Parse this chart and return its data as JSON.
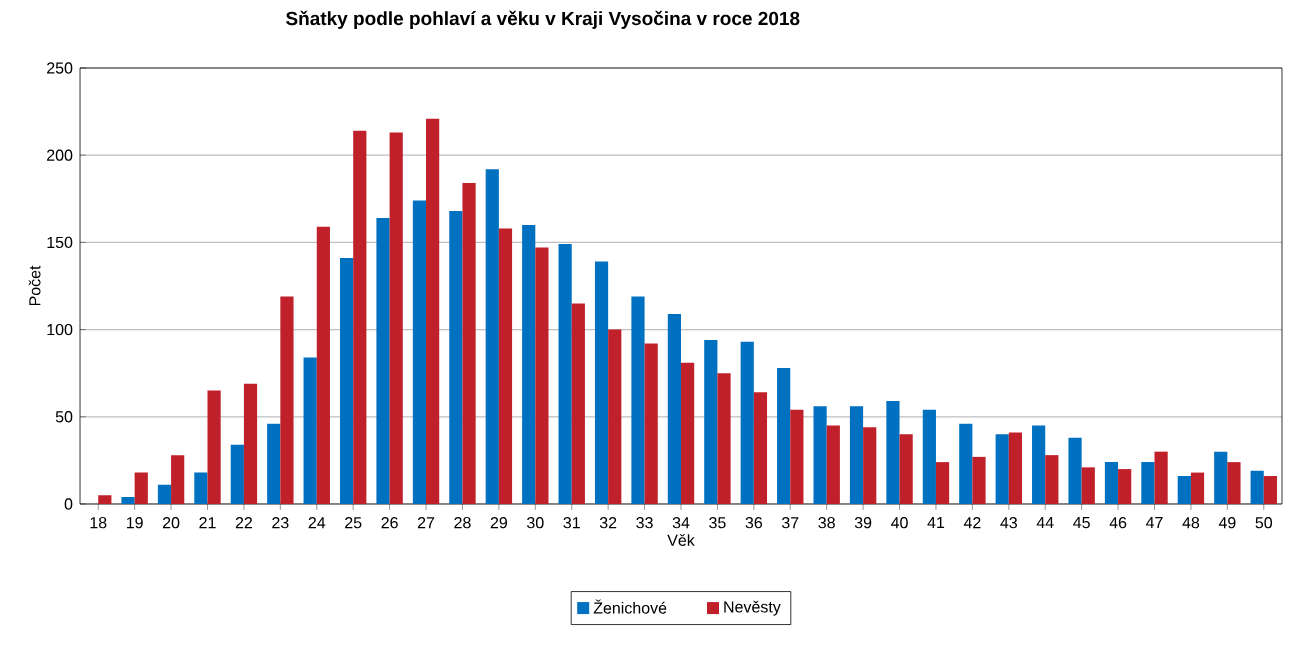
{
  "chart_data": {
    "type": "bar",
    "title": "Sňatky podle pohlaví a věku v Kraji Vysočina v roce 2018",
    "xlabel": "Věk",
    "ylabel": "Počet",
    "categories": [
      "18",
      "19",
      "20",
      "21",
      "22",
      "23",
      "24",
      "25",
      "26",
      "27",
      "28",
      "29",
      "30",
      "31",
      "32",
      "33",
      "34",
      "35",
      "36",
      "37",
      "38",
      "39",
      "40",
      "41",
      "42",
      "43",
      "44",
      "45",
      "46",
      "47",
      "48",
      "49",
      "50"
    ],
    "series": [
      {
        "name": "Ženichové",
        "color": "#0070c0",
        "values": [
          0,
          4,
          11,
          18,
          34,
          46,
          84,
          141,
          164,
          174,
          168,
          192,
          160,
          149,
          139,
          119,
          109,
          94,
          93,
          78,
          56,
          56,
          59,
          54,
          46,
          40,
          45,
          38,
          24,
          24,
          16,
          30,
          19
        ]
      },
      {
        "name": "Nevěsty",
        "color": "#c0202a",
        "values": [
          5,
          18,
          28,
          65,
          69,
          119,
          159,
          214,
          213,
          221,
          184,
          158,
          147,
          115,
          100,
          92,
          81,
          75,
          64,
          54,
          45,
          44,
          40,
          24,
          27,
          41,
          28,
          21,
          20,
          30,
          18,
          24,
          16
        ]
      }
    ],
    "ylim": [
      0,
      250
    ],
    "yticks": [
      0,
      50,
      100,
      150,
      200,
      250
    ],
    "grid": "y",
    "legend": "bottom"
  }
}
